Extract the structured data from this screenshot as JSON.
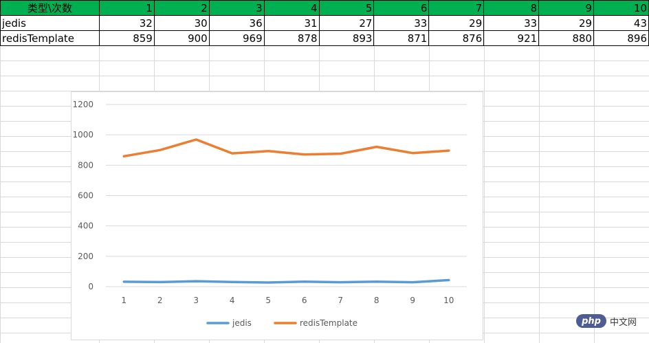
{
  "table": {
    "header": {
      "name": "类型\\次数",
      "cells": [
        "1",
        "2",
        "3",
        "4",
        "5",
        "6",
        "7",
        "8",
        "9",
        "10"
      ]
    },
    "rows": [
      {
        "name": "jedis",
        "cells": [
          "32",
          "30",
          "36",
          "31",
          "27",
          "33",
          "29",
          "33",
          "29",
          "43"
        ]
      },
      {
        "name": "redisTemplate",
        "cells": [
          "859",
          "900",
          "969",
          "878",
          "893",
          "871",
          "876",
          "921",
          "880",
          "896"
        ]
      }
    ]
  },
  "chart_data": {
    "type": "line",
    "categories": [
      "1",
      "2",
      "3",
      "4",
      "5",
      "6",
      "7",
      "8",
      "9",
      "10"
    ],
    "series": [
      {
        "name": "jedis",
        "values": [
          32,
          30,
          36,
          31,
          27,
          33,
          29,
          33,
          29,
          43
        ],
        "color": "#5b9bd5"
      },
      {
        "name": "redisTemplate",
        "values": [
          859,
          900,
          969,
          878,
          893,
          871,
          876,
          921,
          880,
          896
        ],
        "color": "#ed7d31"
      }
    ],
    "yticks": [
      "0",
      "200",
      "400",
      "600",
      "800",
      "1000",
      "1200"
    ],
    "ylim": [
      0,
      1200
    ],
    "grid": true,
    "legend": "bottom",
    "title": "",
    "xlabel": "",
    "ylabel": ""
  },
  "colors": {
    "header_fill": "#00b050",
    "gridline": "#d9d9d9"
  },
  "watermark": {
    "logo": "php",
    "text": "中文网"
  }
}
